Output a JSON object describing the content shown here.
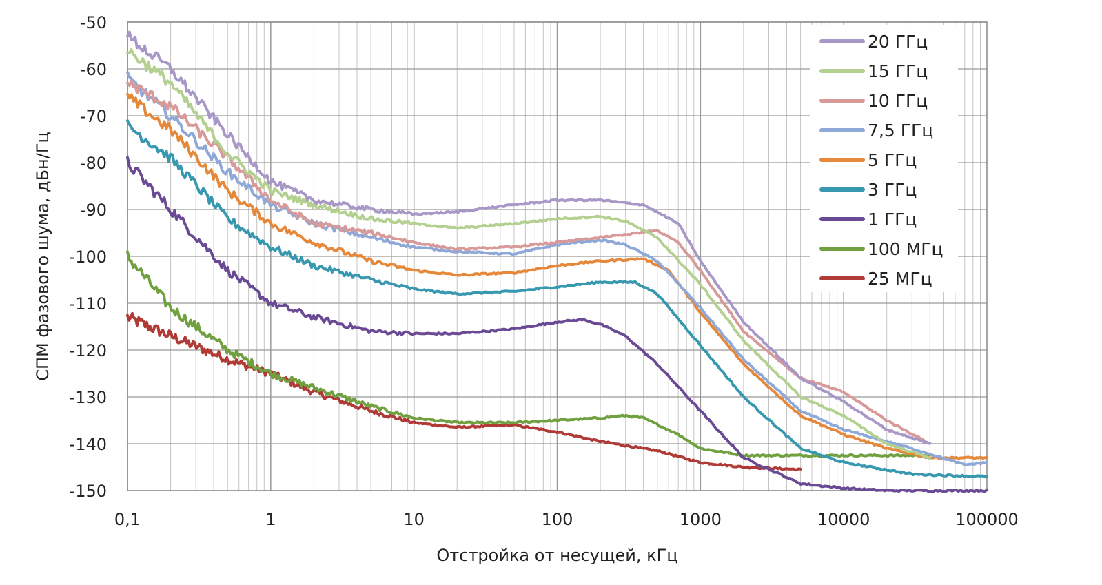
{
  "chart_data": {
    "type": "line",
    "xlabel": "Отстройка от несущей, кГц",
    "ylabel": "СПМ фазового шума, дБн/Гц",
    "x_scale": "log",
    "xlim": [
      0.1,
      100000
    ],
    "ylim": [
      -150,
      -50
    ],
    "x_ticks": [
      0.1,
      1,
      10,
      100,
      1000,
      10000,
      100000
    ],
    "x_tick_labels": [
      "0,1",
      "1",
      "10",
      "100",
      "1000",
      "10000",
      "100000"
    ],
    "y_ticks": [
      -50,
      -60,
      -70,
      -80,
      -90,
      -100,
      -110,
      -120,
      -130,
      -140,
      -150
    ],
    "y_tick_labels": [
      "-50",
      "-60",
      "-70",
      "-80",
      "-90",
      "-100",
      "-110",
      "-120",
      "-130",
      "-140",
      "-150"
    ],
    "grid": true,
    "legend_position": "top-right",
    "series": [
      {
        "name": "20 ГГц",
        "color": "#a898c8",
        "x": [
          0.1,
          0.2,
          0.5,
          1,
          2,
          5,
          10,
          20,
          50,
          100,
          200,
          400,
          700,
          1000,
          2000,
          5000,
          10000,
          20000,
          40000
        ],
        "y": [
          -53,
          -60,
          -74,
          -84,
          -88,
          -90,
          -91,
          -90.5,
          -89,
          -88,
          -88,
          -89,
          -93,
          -101,
          -114,
          -126,
          -131,
          -137,
          -140
        ]
      },
      {
        "name": "15 ГГц",
        "color": "#b4d090",
        "x": [
          0.1,
          0.2,
          0.5,
          1,
          2,
          5,
          10,
          20,
          50,
          100,
          200,
          300,
          500,
          1000,
          2000,
          5000,
          10000,
          20000,
          40000
        ],
        "y": [
          -56,
          -63,
          -78,
          -86,
          -89,
          -92,
          -93,
          -94,
          -93,
          -92,
          -91.5,
          -92.5,
          -96,
          -106,
          -118,
          -130,
          -134,
          -140,
          -143
        ]
      },
      {
        "name": "10 ГГц",
        "color": "#d89a98",
        "x": [
          0.1,
          0.2,
          0.5,
          1,
          2,
          5,
          10,
          20,
          50,
          100,
          200,
          500,
          700,
          1000,
          2000,
          5000,
          10000,
          20000,
          40000
        ],
        "y": [
          -63,
          -68,
          -79,
          -88,
          -93,
          -95,
          -97,
          -98.5,
          -98,
          -97,
          -96,
          -94.5,
          -97,
          -103,
          -116,
          -126,
          -129,
          -135,
          -140
        ]
      },
      {
        "name": "7,5 ГГц",
        "color": "#8ea8d8",
        "x": [
          0.1,
          0.2,
          0.5,
          1,
          2,
          5,
          10,
          20,
          50,
          100,
          200,
          300,
          500,
          1000,
          2000,
          5000,
          10000,
          30000,
          70000,
          100000
        ],
        "y": [
          -62,
          -70,
          -82,
          -89,
          -93,
          -96,
          -98,
          -99,
          -99.5,
          -97.5,
          -96.5,
          -97.5,
          -101,
          -111,
          -122,
          -133,
          -137,
          -141,
          -144.5,
          -144
        ]
      },
      {
        "name": "5 ГГц",
        "color": "#e6883a",
        "x": [
          0.1,
          0.2,
          0.5,
          1,
          2,
          5,
          10,
          20,
          50,
          100,
          200,
          400,
          600,
          1000,
          2000,
          5000,
          10000,
          20000,
          40000,
          100000
        ],
        "y": [
          -66,
          -73,
          -86,
          -93,
          -97,
          -101,
          -103,
          -104,
          -103.5,
          -102,
          -101,
          -100.5,
          -103,
          -112,
          -123,
          -134,
          -138,
          -141,
          -143,
          -143
        ]
      },
      {
        "name": "3 ГГц",
        "color": "#3898b0",
        "x": [
          0.1,
          0.2,
          0.5,
          1,
          2,
          5,
          10,
          20,
          50,
          100,
          200,
          350,
          500,
          1000,
          2000,
          5000,
          10000,
          30000,
          100000
        ],
        "y": [
          -72,
          -79,
          -92,
          -98,
          -102,
          -105,
          -107,
          -108,
          -107.5,
          -106.5,
          -105.5,
          -105.5,
          -108,
          -119,
          -130,
          -141,
          -144,
          -146.5,
          -147
        ]
      },
      {
        "name": "1 ГГц",
        "color": "#6a4a94",
        "x": [
          0.1,
          0.2,
          0.5,
          1,
          2,
          5,
          10,
          20,
          50,
          100,
          150,
          200,
          300,
          500,
          1000,
          2000,
          5000,
          10000,
          20000,
          100000
        ],
        "y": [
          -80,
          -90,
          -103,
          -110,
          -113,
          -116,
          -116.5,
          -116.5,
          -115.5,
          -114,
          -113.5,
          -114.5,
          -117,
          -123,
          -133,
          -143,
          -148.5,
          -149.5,
          -150,
          -150
        ]
      },
      {
        "name": "100 МГц",
        "color": "#70a040",
        "x": [
          0.1,
          0.2,
          0.5,
          1,
          2,
          5,
          10,
          20,
          50,
          100,
          200,
          300,
          400,
          700,
          1000,
          2000,
          5000,
          10000,
          40000
        ],
        "y": [
          -100,
          -111,
          -120,
          -125,
          -128,
          -132,
          -134.5,
          -135.5,
          -135.5,
          -135,
          -134.5,
          -134,
          -134.5,
          -138,
          -141,
          -142.5,
          -142.5,
          -142.5,
          -142.5
        ]
      },
      {
        "name": "25 МГц",
        "color": "#b03a36",
        "x": [
          0.1,
          0.2,
          0.5,
          1,
          2,
          5,
          10,
          20,
          50,
          100,
          200,
          500,
          1000,
          2000,
          5000
        ],
        "y": [
          -113,
          -117,
          -122,
          -125,
          -129,
          -133,
          -135.5,
          -136.5,
          -136,
          -137.5,
          -139.5,
          -141.5,
          -144,
          -145,
          -145.5
        ]
      }
    ]
  }
}
